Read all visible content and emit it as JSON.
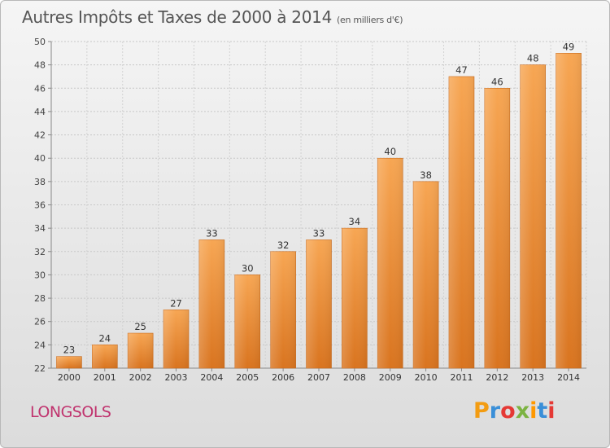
{
  "header": {
    "title": "Autres Impôts et Taxes de 2000 à 2014",
    "unit": "(en milliers d'€)"
  },
  "footer": {
    "town": "LONGSOLS",
    "logo_text": "Proxiti",
    "logo_colors": [
      "#f39c12",
      "#3a8fd8",
      "#e53935",
      "#7cb342",
      "#ff9800",
      "#3a8fd8",
      "#e53935"
    ]
  },
  "chart_data": {
    "type": "bar",
    "title": "Autres Impôts et Taxes de 2000 à 2014",
    "subtitle": "(en milliers d'€)",
    "xlabel": "",
    "ylabel": "",
    "categories": [
      "2000",
      "2001",
      "2002",
      "2003",
      "2004",
      "2005",
      "2006",
      "2007",
      "2008",
      "2009",
      "2010",
      "2011",
      "2012",
      "2013",
      "2014"
    ],
    "values": [
      23,
      24,
      25,
      27,
      33,
      30,
      32,
      33,
      34,
      40,
      38,
      47,
      46,
      48,
      49
    ],
    "ylim": [
      22,
      50
    ],
    "yticks": [
      22,
      24,
      26,
      28,
      30,
      32,
      34,
      36,
      38,
      40,
      42,
      44,
      46,
      48,
      50
    ],
    "grid": true,
    "bar_color": "#f0913a",
    "legend": "none"
  }
}
